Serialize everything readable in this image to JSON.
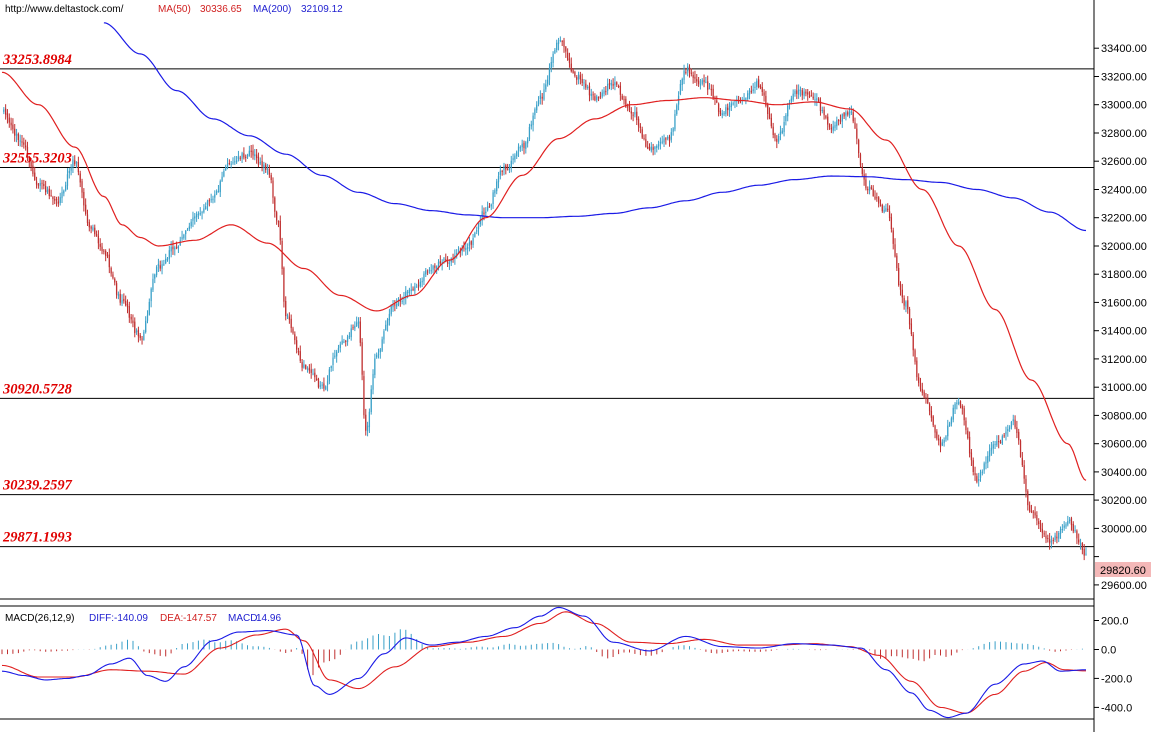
{
  "header": {
    "url": "http://www.deltastock.com/",
    "ma50_label": "MA(50)",
    "ma50_value": "30336.65",
    "ma200_label": "MA(200)",
    "ma200_value": "32109.12"
  },
  "price_badge": "29820.60",
  "colors": {
    "ma50": "#e02020",
    "ma200": "#1a1ae6",
    "candle_up": "#3aa0c8",
    "candle_down": "#c03030",
    "level_text": "#e00000",
    "badge_bg": "#f4b8b8"
  },
  "chart_data": [
    {
      "type": "candlestick",
      "ylim": [
        29500,
        33600
      ],
      "y_ticks": [
        29600,
        29800,
        30000,
        30200,
        30400,
        30600,
        30800,
        31000,
        31200,
        31400,
        31600,
        31800,
        32000,
        32200,
        32400,
        32600,
        32800,
        33000,
        33200,
        33400
      ],
      "y_tick_labels": [
        "29600.00",
        "",
        "30000.00",
        "30200.00",
        "30400.00",
        "30600.00",
        "30800.00",
        "31000.00",
        "31200.00",
        "31400.00",
        "31600.00",
        "31800.00",
        "32000.00",
        "32200.00",
        "32400.00",
        "32600.00",
        "32800.00",
        "33000.00",
        "33200.00",
        "33400.00"
      ],
      "levels": [
        "33253.8984",
        "32555.3203",
        "30920.5728",
        "30239.2597",
        "29871.1993"
      ],
      "level_values": [
        33253.8984,
        32555.3203,
        30920.5728,
        30239.2597,
        29871.1993
      ],
      "last_price": 29820.6,
      "close_anchors": [
        [
          0,
          32950
        ],
        [
          10,
          32750
        ],
        [
          20,
          32450
        ],
        [
          30,
          32300
        ],
        [
          40,
          32600
        ],
        [
          48,
          32150
        ],
        [
          56,
          31950
        ],
        [
          66,
          31600
        ],
        [
          76,
          31350
        ],
        [
          86,
          31850
        ],
        [
          96,
          32000
        ],
        [
          106,
          32200
        ],
        [
          116,
          32350
        ],
        [
          126,
          32600
        ],
        [
          136,
          32650
        ],
        [
          146,
          32550
        ],
        [
          152,
          32150
        ],
        [
          156,
          31500
        ],
        [
          166,
          31150
        ],
        [
          176,
          31000
        ],
        [
          186,
          31300
        ],
        [
          196,
          31450
        ],
        [
          200,
          30700
        ],
        [
          206,
          31250
        ],
        [
          216,
          31600
        ],
        [
          226,
          31700
        ],
        [
          236,
          31850
        ],
        [
          246,
          31900
        ],
        [
          256,
          32000
        ],
        [
          266,
          32250
        ],
        [
          276,
          32550
        ],
        [
          286,
          32700
        ],
        [
          296,
          33050
        ],
        [
          306,
          33450
        ],
        [
          316,
          33200
        ],
        [
          326,
          33050
        ],
        [
          336,
          33150
        ],
        [
          346,
          32950
        ],
        [
          356,
          32700
        ],
        [
          366,
          32750
        ],
        [
          376,
          33250
        ],
        [
          386,
          33150
        ],
        [
          396,
          32950
        ],
        [
          406,
          33050
        ],
        [
          416,
          33150
        ],
        [
          426,
          32750
        ],
        [
          436,
          33100
        ],
        [
          446,
          33050
        ],
        [
          456,
          32850
        ],
        [
          466,
          32950
        ],
        [
          476,
          32400
        ],
        [
          486,
          32250
        ],
        [
          496,
          31600
        ],
        [
          506,
          30950
        ],
        [
          516,
          30600
        ],
        [
          526,
          30900
        ],
        [
          536,
          30350
        ],
        [
          546,
          30600
        ],
        [
          556,
          30750
        ],
        [
          566,
          30100
        ],
        [
          576,
          29900
        ],
        [
          586,
          30050
        ],
        [
          596,
          29820.6
        ]
      ],
      "ma50_anchors": [
        [
          0,
          33230
        ],
        [
          20,
          33000
        ],
        [
          40,
          32700
        ],
        [
          56,
          32350
        ],
        [
          66,
          32150
        ],
        [
          76,
          32060
        ],
        [
          86,
          32000
        ],
        [
          106,
          32040
        ],
        [
          126,
          32150
        ],
        [
          146,
          32020
        ],
        [
          166,
          31840
        ],
        [
          186,
          31650
        ],
        [
          206,
          31540
        ],
        [
          226,
          31650
        ],
        [
          246,
          31900
        ],
        [
          266,
          32200
        ],
        [
          286,
          32500
        ],
        [
          306,
          32760
        ],
        [
          326,
          32900
        ],
        [
          346,
          33000
        ],
        [
          366,
          33030
        ],
        [
          386,
          33050
        ],
        [
          406,
          33030
        ],
        [
          426,
          33000
        ],
        [
          446,
          33020
        ],
        [
          466,
          32970
        ],
        [
          486,
          32750
        ],
        [
          506,
          32400
        ],
        [
          526,
          32000
        ],
        [
          546,
          31550
        ],
        [
          566,
          31050
        ],
        [
          586,
          30600
        ],
        [
          596,
          30340
        ]
      ],
      "ma200_anchors": [
        [
          56,
          33580
        ],
        [
          76,
          33360
        ],
        [
          96,
          33100
        ],
        [
          116,
          32900
        ],
        [
          136,
          32780
        ],
        [
          156,
          32650
        ],
        [
          176,
          32500
        ],
        [
          196,
          32380
        ],
        [
          216,
          32300
        ],
        [
          236,
          32250
        ],
        [
          256,
          32220
        ],
        [
          276,
          32200
        ],
        [
          296,
          32200
        ],
        [
          316,
          32210
        ],
        [
          336,
          32230
        ],
        [
          356,
          32270
        ],
        [
          376,
          32320
        ],
        [
          396,
          32380
        ],
        [
          416,
          32430
        ],
        [
          436,
          32470
        ],
        [
          456,
          32495
        ],
        [
          476,
          32490
        ],
        [
          496,
          32470
        ],
        [
          516,
          32450
        ],
        [
          536,
          32400
        ],
        [
          556,
          32340
        ],
        [
          576,
          32240
        ],
        [
          596,
          32109.12
        ]
      ]
    },
    {
      "type": "macd",
      "title": "MACD(26,12,9)",
      "diff_label": "DIFF:",
      "diff_value": "-140.09",
      "dea_label": "DEA:",
      "dea_value": "-147.57",
      "macd_label": "MACD:",
      "macd_value": "14.96",
      "ylim": [
        -480,
        300
      ],
      "y_ticks": [
        200,
        0,
        -200,
        -400
      ],
      "y_tick_labels": [
        "200.0",
        "0.0",
        "-200.0",
        "-400.0"
      ],
      "diff_anchors": [
        [
          0,
          -150
        ],
        [
          12,
          -180
        ],
        [
          24,
          -210
        ],
        [
          36,
          -200
        ],
        [
          46,
          -180
        ],
        [
          60,
          -100
        ],
        [
          70,
          -60
        ],
        [
          80,
          -180
        ],
        [
          90,
          -220
        ],
        [
          100,
          -120
        ],
        [
          116,
          60
        ],
        [
          130,
          120
        ],
        [
          146,
          130
        ],
        [
          162,
          100
        ],
        [
          172,
          -250
        ],
        [
          180,
          -310
        ],
        [
          196,
          -200
        ],
        [
          210,
          -30
        ],
        [
          222,
          80
        ],
        [
          236,
          30
        ],
        [
          250,
          50
        ],
        [
          266,
          90
        ],
        [
          282,
          150
        ],
        [
          296,
          230
        ],
        [
          306,
          290
        ],
        [
          320,
          230
        ],
        [
          336,
          50
        ],
        [
          356,
          -10
        ],
        [
          376,
          90
        ],
        [
          396,
          20
        ],
        [
          416,
          10
        ],
        [
          436,
          40
        ],
        [
          456,
          30
        ],
        [
          472,
          10
        ],
        [
          486,
          -140
        ],
        [
          500,
          -300
        ],
        [
          510,
          -420
        ],
        [
          520,
          -470
        ],
        [
          530,
          -440
        ],
        [
          546,
          -240
        ],
        [
          562,
          -100
        ],
        [
          572,
          -80
        ],
        [
          582,
          -150
        ],
        [
          596,
          -140.09
        ]
      ],
      "dea_anchors": [
        [
          0,
          -110
        ],
        [
          20,
          -190
        ],
        [
          40,
          -190
        ],
        [
          60,
          -140
        ],
        [
          80,
          -150
        ],
        [
          100,
          -170
        ],
        [
          120,
          10
        ],
        [
          140,
          100
        ],
        [
          156,
          140
        ],
        [
          166,
          60
        ],
        [
          180,
          -210
        ],
        [
          196,
          -270
        ],
        [
          216,
          -120
        ],
        [
          236,
          20
        ],
        [
          256,
          50
        ],
        [
          276,
          90
        ],
        [
          296,
          180
        ],
        [
          310,
          260
        ],
        [
          326,
          180
        ],
        [
          346,
          50
        ],
        [
          366,
          40
        ],
        [
          386,
          70
        ],
        [
          406,
          30
        ],
        [
          426,
          30
        ],
        [
          446,
          40
        ],
        [
          466,
          20
        ],
        [
          482,
          -40
        ],
        [
          500,
          -220
        ],
        [
          516,
          -400
        ],
        [
          530,
          -440
        ],
        [
          546,
          -310
        ],
        [
          562,
          -150
        ],
        [
          574,
          -90
        ],
        [
          584,
          -140
        ],
        [
          596,
          -147.57
        ]
      ]
    }
  ]
}
